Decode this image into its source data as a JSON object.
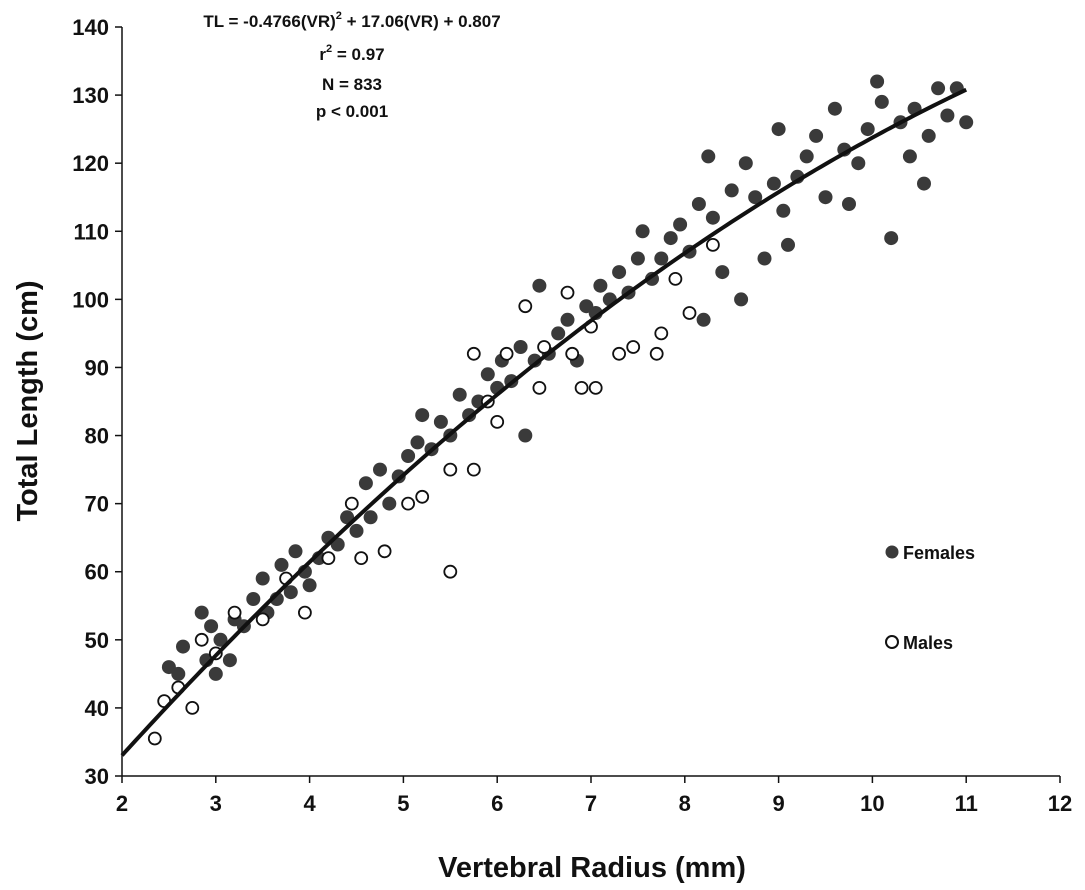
{
  "chart_data": {
    "type": "scatter",
    "xlabel": "Vertebral Radius (mm)",
    "ylabel": "Total Length (cm)",
    "xlim": [
      2,
      12
    ],
    "ylim": [
      30,
      140
    ],
    "xticks": [
      2,
      3,
      4,
      5,
      6,
      7,
      8,
      9,
      10,
      11,
      12
    ],
    "yticks": [
      30,
      40,
      50,
      60,
      70,
      80,
      90,
      100,
      110,
      120,
      130,
      140
    ],
    "grid": false,
    "legend_position": "right",
    "annotations": {
      "equation": {
        "parts": [
          {
            "text": "TL = -0.4766(VR)",
            "sup": false
          },
          {
            "text": "2",
            "sup": true
          },
          {
            "text": " + 17.06(VR) + 0.807",
            "sup": false
          }
        ]
      },
      "r2": {
        "parts": [
          {
            "text": "r",
            "sup": false
          },
          {
            "text": "2",
            "sup": true
          },
          {
            "text": " = 0.97",
            "sup": false
          }
        ]
      },
      "n": "N = 833",
      "p": "p < 0.001"
    },
    "fit": {
      "name": "",
      "a": -0.4766,
      "b": 17.06,
      "c": 0.807,
      "x_range": [
        2.0,
        11.0
      ],
      "color": "#111111"
    },
    "series": [
      {
        "name": "Females",
        "marker": "filled",
        "color": "#3a3a3a",
        "points": [
          [
            2.5,
            46
          ],
          [
            2.6,
            45
          ],
          [
            2.65,
            49
          ],
          [
            2.85,
            54
          ],
          [
            2.9,
            47
          ],
          [
            2.95,
            52
          ],
          [
            3.0,
            45
          ],
          [
            3.05,
            50
          ],
          [
            3.15,
            47
          ],
          [
            3.2,
            53
          ],
          [
            3.3,
            52
          ],
          [
            3.4,
            56
          ],
          [
            3.5,
            59
          ],
          [
            3.55,
            54
          ],
          [
            3.65,
            56
          ],
          [
            3.7,
            61
          ],
          [
            3.8,
            57
          ],
          [
            3.85,
            63
          ],
          [
            3.95,
            60
          ],
          [
            4.0,
            58
          ],
          [
            4.1,
            62
          ],
          [
            4.2,
            65
          ],
          [
            4.3,
            64
          ],
          [
            4.4,
            68
          ],
          [
            4.5,
            66
          ],
          [
            4.6,
            73
          ],
          [
            4.65,
            68
          ],
          [
            4.75,
            75
          ],
          [
            4.85,
            70
          ],
          [
            4.95,
            74
          ],
          [
            5.05,
            77
          ],
          [
            5.15,
            79
          ],
          [
            5.2,
            83
          ],
          [
            5.3,
            78
          ],
          [
            5.4,
            82
          ],
          [
            5.5,
            80
          ],
          [
            5.6,
            86
          ],
          [
            5.7,
            83
          ],
          [
            5.8,
            85
          ],
          [
            5.9,
            89
          ],
          [
            6.0,
            87
          ],
          [
            6.05,
            91
          ],
          [
            6.15,
            88
          ],
          [
            6.25,
            93
          ],
          [
            6.3,
            80
          ],
          [
            6.4,
            91
          ],
          [
            6.45,
            102
          ],
          [
            6.55,
            92
          ],
          [
            6.65,
            95
          ],
          [
            6.75,
            97
          ],
          [
            6.85,
            91
          ],
          [
            6.95,
            99
          ],
          [
            7.05,
            98
          ],
          [
            7.1,
            102
          ],
          [
            7.2,
            100
          ],
          [
            7.3,
            104
          ],
          [
            7.4,
            101
          ],
          [
            7.5,
            106
          ],
          [
            7.55,
            110
          ],
          [
            7.65,
            103
          ],
          [
            7.75,
            106
          ],
          [
            7.85,
            109
          ],
          [
            7.95,
            111
          ],
          [
            8.05,
            107
          ],
          [
            8.15,
            114
          ],
          [
            8.2,
            97
          ],
          [
            8.25,
            121
          ],
          [
            8.3,
            112
          ],
          [
            8.4,
            104
          ],
          [
            8.5,
            116
          ],
          [
            8.6,
            100
          ],
          [
            8.65,
            120
          ],
          [
            8.75,
            115
          ],
          [
            8.85,
            106
          ],
          [
            8.95,
            117
          ],
          [
            9.0,
            125
          ],
          [
            9.05,
            113
          ],
          [
            9.1,
            108
          ],
          [
            9.2,
            118
          ],
          [
            9.3,
            121
          ],
          [
            9.4,
            124
          ],
          [
            9.5,
            115
          ],
          [
            9.6,
            128
          ],
          [
            9.7,
            122
          ],
          [
            9.75,
            114
          ],
          [
            9.85,
            120
          ],
          [
            9.95,
            125
          ],
          [
            10.05,
            132
          ],
          [
            10.1,
            129
          ],
          [
            10.2,
            109
          ],
          [
            10.3,
            126
          ],
          [
            10.4,
            121
          ],
          [
            10.45,
            128
          ],
          [
            10.55,
            117
          ],
          [
            10.6,
            124
          ],
          [
            10.7,
            131
          ],
          [
            10.8,
            127
          ],
          [
            10.9,
            131
          ],
          [
            11.0,
            126
          ]
        ]
      },
      {
        "name": "Males",
        "marker": "open",
        "color": "#111111",
        "points": [
          [
            2.35,
            35.5
          ],
          [
            2.45,
            41
          ],
          [
            2.6,
            43
          ],
          [
            2.75,
            40
          ],
          [
            2.85,
            50
          ],
          [
            3.0,
            48
          ],
          [
            3.2,
            54
          ],
          [
            3.5,
            53
          ],
          [
            3.75,
            59
          ],
          [
            3.95,
            54
          ],
          [
            4.2,
            62
          ],
          [
            4.45,
            70
          ],
          [
            4.55,
            62
          ],
          [
            4.8,
            63
          ],
          [
            5.05,
            70
          ],
          [
            5.2,
            71
          ],
          [
            5.5,
            60
          ],
          [
            5.5,
            75
          ],
          [
            5.75,
            75
          ],
          [
            5.75,
            92
          ],
          [
            5.9,
            85
          ],
          [
            6.0,
            82
          ],
          [
            6.1,
            92
          ],
          [
            6.3,
            99
          ],
          [
            6.45,
            87
          ],
          [
            6.5,
            93
          ],
          [
            6.75,
            101
          ],
          [
            6.8,
            92
          ],
          [
            6.9,
            87
          ],
          [
            7.0,
            96
          ],
          [
            7.05,
            87
          ],
          [
            7.3,
            92
          ],
          [
            7.45,
            93
          ],
          [
            7.7,
            92
          ],
          [
            7.75,
            95
          ],
          [
            7.9,
            103
          ],
          [
            8.05,
            98
          ],
          [
            8.3,
            108
          ]
        ]
      }
    ]
  }
}
